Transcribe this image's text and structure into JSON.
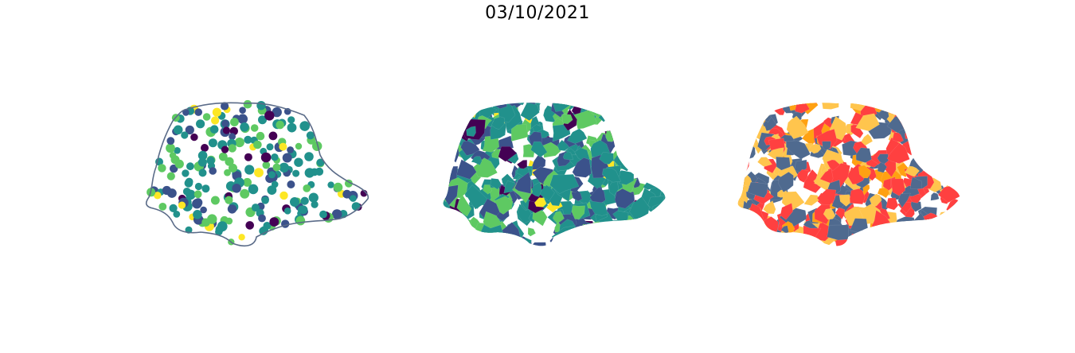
{
  "title": "03/10/2021",
  "maps": [
    {
      "kind": "points",
      "colormap": [
        "#440154",
        "#3b528b",
        "#21918c",
        "#5ec962",
        "#fde725"
      ],
      "outline_color": "#5a6b88",
      "point_count": 230
    },
    {
      "kind": "choropleth",
      "colormap": [
        "#440154",
        "#3b528b",
        "#21918c",
        "#5ec962",
        "#fde725"
      ],
      "cell_count": 420
    },
    {
      "kind": "categorical",
      "category_colors": [
        "#4f6a8f",
        "#ff4040",
        "#ffc54d",
        "#ffa112"
      ],
      "cell_count": 420
    }
  ]
}
